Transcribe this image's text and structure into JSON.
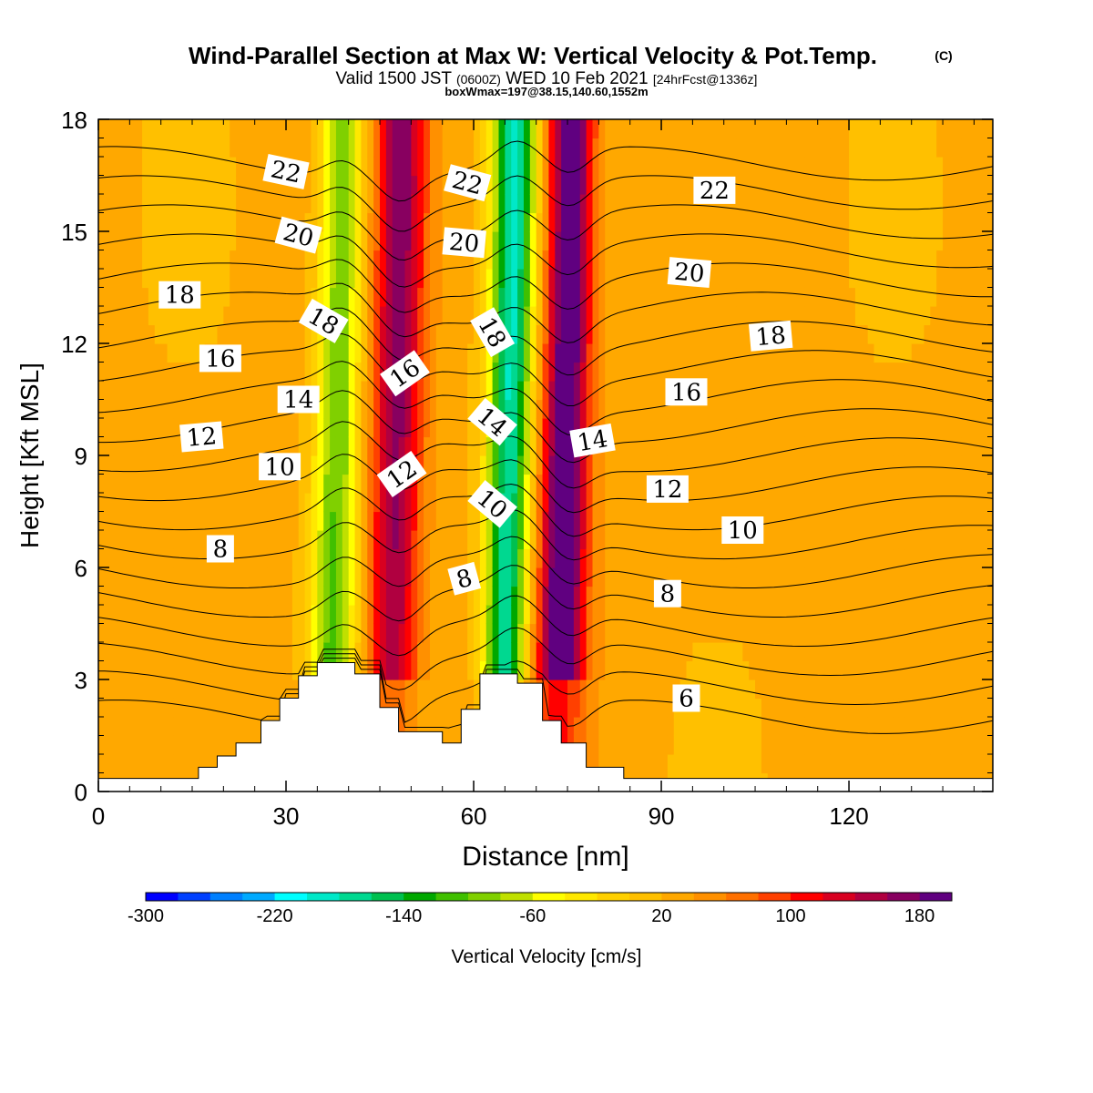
{
  "header": {
    "title": "Wind-Parallel Section at Max W: Vertical Velocity & Pot.Temp.",
    "title_mark": "(C)",
    "valid_prefix": "Valid 1500 JST",
    "valid_utc": "(0600Z)",
    "valid_date": "WED 10 Feb 2021",
    "valid_fcst": "[24hrFcst@1336z]",
    "box_info": "boxWmax=197@38.15,140.60,1552m"
  },
  "chart_data": {
    "type": "heatmap",
    "xlabel": "Distance [nm]",
    "ylabel": "Height [Kft MSL]",
    "xlim": [
      0,
      143
    ],
    "ylim": [
      0,
      18
    ],
    "x_ticks": [
      0,
      30,
      60,
      90,
      120
    ],
    "y_ticks": [
      0,
      3,
      6,
      9,
      12,
      15,
      18
    ],
    "colorbar": {
      "label": "Vertical Velocity [cm/s]",
      "range": [
        -300,
        200
      ],
      "ticks": [
        -300,
        -220,
        -140,
        -60,
        20,
        100,
        180
      ],
      "colors": [
        "#0000ff",
        "#0040ff",
        "#0080ff",
        "#00aaff",
        "#00ffff",
        "#00e8c8",
        "#00d890",
        "#00c050",
        "#00a800",
        "#40c000",
        "#80d000",
        "#c0e000",
        "#ffff00",
        "#ffe800",
        "#ffd000",
        "#ffc000",
        "#ffa800",
        "#ff9000",
        "#ff7000",
        "#ff4000",
        "#ff0000",
        "#d80020",
        "#b00040",
        "#880060",
        "#600080"
      ]
    },
    "velocity_bands": [
      {
        "x": 39,
        "w": 2.6,
        "peak": -130
      },
      {
        "x": 48.5,
        "w": 2.8,
        "peak": 135
      },
      {
        "x": 66.5,
        "w": 2.4,
        "peak": -205
      },
      {
        "x": 75.5,
        "w": 2.6,
        "peak": 190
      }
    ],
    "terrain": [
      [
        0,
        0.35
      ],
      [
        16,
        0.35
      ],
      [
        16,
        0.65
      ],
      [
        19,
        0.65
      ],
      [
        19,
        0.95
      ],
      [
        22,
        0.95
      ],
      [
        22,
        1.3
      ],
      [
        26,
        1.3
      ],
      [
        26,
        1.9
      ],
      [
        29,
        1.9
      ],
      [
        29,
        2.5
      ],
      [
        32,
        2.5
      ],
      [
        32,
        3.1
      ],
      [
        35,
        3.1
      ],
      [
        35,
        3.45
      ],
      [
        41,
        3.45
      ],
      [
        41,
        3.15
      ],
      [
        45,
        3.15
      ],
      [
        45,
        2.25
      ],
      [
        48,
        2.25
      ],
      [
        48,
        1.6
      ],
      [
        55,
        1.6
      ],
      [
        55,
        1.3
      ],
      [
        58,
        1.3
      ],
      [
        58,
        2.2
      ],
      [
        61,
        2.2
      ],
      [
        61,
        3.15
      ],
      [
        67,
        3.15
      ],
      [
        67,
        2.9
      ],
      [
        71,
        2.9
      ],
      [
        71,
        1.9
      ],
      [
        74,
        1.9
      ],
      [
        74,
        1.3
      ],
      [
        78,
        1.3
      ],
      [
        78,
        0.65
      ],
      [
        84,
        0.65
      ],
      [
        84,
        0.35
      ],
      [
        87,
        0.35
      ],
      [
        87,
        0.35
      ],
      [
        143,
        0.35
      ]
    ],
    "theta_levels": [
      4,
      5,
      6,
      7,
      8,
      9,
      10,
      11,
      12,
      13,
      14,
      15,
      16,
      17,
      18,
      19,
      20,
      21,
      22,
      23
    ],
    "contour_labels": [
      {
        "text": "22",
        "x": 30,
        "y": 16.6,
        "angle": 12
      },
      {
        "text": "20",
        "x": 32,
        "y": 14.9,
        "angle": 15
      },
      {
        "text": "18",
        "x": 13,
        "y": 13.3,
        "angle": 0
      },
      {
        "text": "18",
        "x": 36,
        "y": 12.6,
        "angle": 30
      },
      {
        "text": "16",
        "x": 19.5,
        "y": 11.6,
        "angle": 0
      },
      {
        "text": "14",
        "x": 32,
        "y": 10.5,
        "angle": 0
      },
      {
        "text": "12",
        "x": 16.5,
        "y": 9.5,
        "angle": -5
      },
      {
        "text": "10",
        "x": 29,
        "y": 8.7,
        "angle": 0
      },
      {
        "text": "8",
        "x": 19.5,
        "y": 6.5,
        "angle": 0
      },
      {
        "text": "16",
        "x": 49,
        "y": 11.2,
        "angle": -35
      },
      {
        "text": "12",
        "x": 48.5,
        "y": 8.5,
        "angle": -35
      },
      {
        "text": "22",
        "x": 59,
        "y": 16.3,
        "angle": 15
      },
      {
        "text": "20",
        "x": 58.5,
        "y": 14.7,
        "angle": 5
      },
      {
        "text": "18",
        "x": 63,
        "y": 12.3,
        "angle": 60
      },
      {
        "text": "14",
        "x": 63,
        "y": 9.9,
        "angle": 40
      },
      {
        "text": "10",
        "x": 63,
        "y": 7.7,
        "angle": 40
      },
      {
        "text": "8",
        "x": 58.5,
        "y": 5.7,
        "angle": -15
      },
      {
        "text": "14",
        "x": 79,
        "y": 9.4,
        "angle": -10
      },
      {
        "text": "22",
        "x": 98.5,
        "y": 16.1,
        "angle": 0
      },
      {
        "text": "20",
        "x": 94.5,
        "y": 13.9,
        "angle": 5
      },
      {
        "text": "18",
        "x": 107.5,
        "y": 12.2,
        "angle": -5
      },
      {
        "text": "16",
        "x": 94,
        "y": 10.7,
        "angle": 0
      },
      {
        "text": "12",
        "x": 91,
        "y": 8.1,
        "angle": 0
      },
      {
        "text": "10",
        "x": 103,
        "y": 7.0,
        "angle": 0
      },
      {
        "text": "8",
        "x": 91,
        "y": 5.3,
        "angle": 0
      },
      {
        "text": "6",
        "x": 94,
        "y": 2.5,
        "angle": 0
      }
    ]
  }
}
